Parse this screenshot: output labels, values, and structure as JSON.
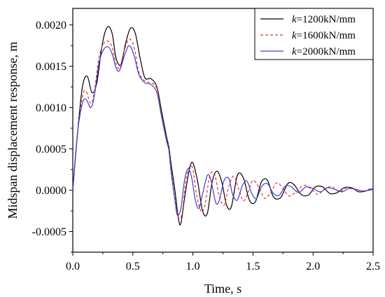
{
  "chart_data": {
    "type": "line",
    "xlabel": "Time, s",
    "ylabel": "Midspan displacement response, m",
    "xlim": [
      0.0,
      2.5
    ],
    "ylim": [
      -0.00075,
      0.0022
    ],
    "xticks": [
      0.0,
      0.5,
      1.0,
      1.5,
      2.0,
      2.5
    ],
    "xtick_labels": [
      "0.0",
      "0.5",
      "1.0",
      "1.5",
      "2.0",
      "2.5"
    ],
    "yticks": [
      -0.0005,
      0.0,
      0.0005,
      0.001,
      0.0015,
      0.002
    ],
    "ytick_labels": [
      "-0.0005",
      "0.0000",
      "0.0005",
      "0.0010",
      "0.0015",
      "0.0020"
    ],
    "grid": false,
    "legend_position": "top-right",
    "series": [
      {
        "name_italic": "k",
        "name_rest": "=1200kN/mm",
        "color": "#000000",
        "dash": "solid",
        "x": [
          0.0,
          0.04,
          0.08,
          0.12,
          0.16,
          0.2,
          0.24,
          0.27,
          0.3,
          0.33,
          0.36,
          0.4,
          0.44,
          0.48,
          0.52,
          0.56,
          0.6,
          0.65,
          0.7,
          0.74,
          0.78,
          0.8,
          0.82,
          0.85,
          0.88,
          0.9,
          0.93,
          0.97,
          1.0,
          1.04,
          1.08,
          1.12,
          1.16,
          1.2,
          1.24,
          1.28,
          1.32,
          1.37,
          1.42,
          1.47,
          1.52,
          1.57,
          1.62,
          1.67,
          1.73,
          1.79,
          1.84,
          1.9,
          1.96,
          2.02,
          2.08,
          2.14,
          2.2,
          2.26,
          2.32,
          2.38,
          2.44,
          2.5
        ],
        "y": [
          0.0,
          0.0007,
          0.00125,
          0.00138,
          0.00118,
          0.0013,
          0.00172,
          0.00192,
          0.00198,
          0.00188,
          0.0016,
          0.00152,
          0.00178,
          0.00196,
          0.0019,
          0.0016,
          0.00136,
          0.00135,
          0.00125,
          0.00095,
          0.00065,
          0.00052,
          0.0003,
          0.0,
          -0.00035,
          -0.0004,
          -0.0001,
          0.00025,
          0.00033,
          0.0001,
          -0.00025,
          -0.00028,
          0.0001,
          0.00023,
          0.0001,
          -0.00018,
          -0.0002,
          0.00018,
          0.00015,
          -0.00012,
          -0.00014,
          0.0001,
          0.00012,
          -8e-05,
          -9e-05,
          8e-05,
          7e-05,
          -5e-05,
          -6e-05,
          4e-05,
          4e-05,
          -4e-05,
          -3e-05,
          3e-05,
          3e-05,
          -2e-05,
          -1e-05,
          2e-05
        ]
      },
      {
        "name_italic": "k",
        "name_rest": "=1600kN/mm",
        "color": "#e8312a",
        "dash": "dashed",
        "x": [
          0.0,
          0.04,
          0.08,
          0.11,
          0.15,
          0.18,
          0.22,
          0.26,
          0.3,
          0.33,
          0.36,
          0.39,
          0.43,
          0.47,
          0.51,
          0.55,
          0.6,
          0.65,
          0.7,
          0.74,
          0.78,
          0.8,
          0.82,
          0.85,
          0.88,
          0.91,
          0.94,
          0.97,
          1.0,
          1.03,
          1.07,
          1.1,
          1.14,
          1.18,
          1.22,
          1.26,
          1.3,
          1.34,
          1.38,
          1.42,
          1.46,
          1.5,
          1.55,
          1.6,
          1.65,
          1.7,
          1.75,
          1.8,
          1.86,
          1.92,
          1.98,
          2.04,
          2.1,
          2.16,
          2.22,
          2.28,
          2.34,
          2.4,
          2.46,
          2.5
        ],
        "y": [
          0.0,
          0.0007,
          0.00113,
          0.0012,
          0.00105,
          0.0012,
          0.00162,
          0.00178,
          0.0018,
          0.00172,
          0.00153,
          0.00148,
          0.0017,
          0.00183,
          0.00173,
          0.00143,
          0.00132,
          0.0013,
          0.00123,
          0.0009,
          0.00062,
          0.0005,
          0.00025,
          -0.0001,
          -0.00033,
          -0.00028,
          0.0001,
          0.00028,
          0.00025,
          -5e-05,
          -0.00026,
          -0.00018,
          0.00017,
          0.0002,
          -8e-05,
          -0.00018,
          5e-05,
          0.00017,
          2e-05,
          -0.00013,
          -2e-05,
          0.00012,
          3e-05,
          -0.0001,
          -2e-05,
          9e-05,
          2e-05,
          -7e-05,
          -2e-05,
          6e-05,
          2e-05,
          -5e-05,
          2e-05,
          4e-05,
          -2e-05,
          3e-05,
          1e-05,
          -2e-05,
          1e-05,
          2e-05
        ]
      },
      {
        "name_italic": "k",
        "name_rest": "=2000kN/mm",
        "color": "#3d3dd6",
        "dash": "solid",
        "x": [
          0.0,
          0.04,
          0.08,
          0.11,
          0.15,
          0.18,
          0.22,
          0.26,
          0.3,
          0.33,
          0.36,
          0.39,
          0.43,
          0.47,
          0.51,
          0.55,
          0.6,
          0.65,
          0.7,
          0.74,
          0.78,
          0.8,
          0.82,
          0.85,
          0.87,
          0.9,
          0.93,
          0.96,
          0.99,
          1.02,
          1.05,
          1.08,
          1.12,
          1.15,
          1.19,
          1.22,
          1.26,
          1.3,
          1.33,
          1.37,
          1.41,
          1.45,
          1.49,
          1.53,
          1.57,
          1.62,
          1.67,
          1.72,
          1.77,
          1.82,
          1.88,
          1.94,
          2.0,
          2.06,
          2.12,
          2.18,
          2.24,
          2.3,
          2.36,
          2.42,
          2.5
        ],
        "y": [
          0.0,
          0.0007,
          0.00105,
          0.0011,
          0.001,
          0.00115,
          0.00155,
          0.00171,
          0.00173,
          0.00164,
          0.00148,
          0.00145,
          0.00163,
          0.00175,
          0.00163,
          0.0014,
          0.0013,
          0.00128,
          0.00118,
          0.00088,
          0.0006,
          0.00048,
          0.0002,
          -0.00012,
          -0.0003,
          -0.00022,
          0.00012,
          0.00026,
          0.00015,
          -0.00012,
          -0.00022,
          -5e-05,
          0.00018,
          0.00012,
          -0.00015,
          -0.00012,
          0.00012,
          0.00014,
          -5e-05,
          -0.00012,
          5e-05,
          0.00011,
          -4e-05,
          -0.0001,
          4e-05,
          8e-05,
          -4e-05,
          -6e-05,
          5e-05,
          4e-05,
          -3e-05,
          4e-05,
          2e-05,
          -2e-05,
          3e-05,
          1e-05,
          -2e-05,
          2e-05,
          1e-05,
          -1e-05,
          1e-05
        ]
      }
    ]
  }
}
